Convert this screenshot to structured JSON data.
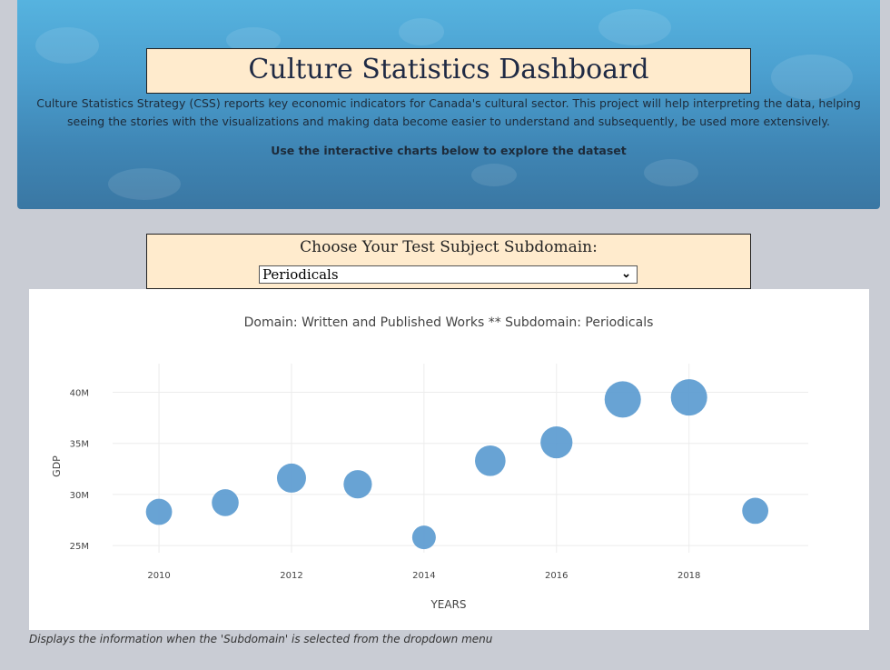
{
  "header": {
    "title": "Culture Statistics Dashboard",
    "intro": "Culture Statistics Strategy (CSS) reports key economic indicators for Canada's cultural sector. This project will help interpreting the data, helping seeing the stories with the visualizations and making data become easier to understand and subsequently, be used more extensively.",
    "hint": "Use the interactive charts below to explore the dataset"
  },
  "selector": {
    "label": "Choose Your Test Subject Subdomain:",
    "selected": "Periodicals"
  },
  "caption": "Displays the information when the 'Subdomain' is selected from the dropdown menu",
  "colors": {
    "marker": "#5b9bd0",
    "title_box": "#ffebcd",
    "hero": "#4b9fcf"
  },
  "chart_data": {
    "type": "scatter",
    "title": "Domain: Written and Published Works ** Subdomain: Periodicals",
    "xlabel": "YEARS",
    "ylabel": "GDP",
    "x": [
      2010,
      2011,
      2012,
      2013,
      2014,
      2015,
      2016,
      2017,
      2018,
      2019
    ],
    "y": [
      28300000,
      29200000,
      31600000,
      31000000,
      25800000,
      33300000,
      35100000,
      39300000,
      39500000,
      28400000
    ],
    "marker_size_relative": [
      0.72,
      0.74,
      0.8,
      0.78,
      0.65,
      0.84,
      0.88,
      1.0,
      1.0,
      0.72
    ],
    "xlim": [
      2009.3,
      2019.8
    ],
    "ylim": [
      24300000,
      42800000
    ],
    "x_ticks": [
      2010,
      2012,
      2014,
      2016,
      2018
    ],
    "x_tick_labels": [
      "2010",
      "2012",
      "2014",
      "2016",
      "2018"
    ],
    "y_ticks": [
      25000000,
      30000000,
      35000000,
      40000000
    ],
    "y_tick_labels": [
      "25M",
      "30M",
      "35M",
      "40M"
    ],
    "grid": true
  }
}
